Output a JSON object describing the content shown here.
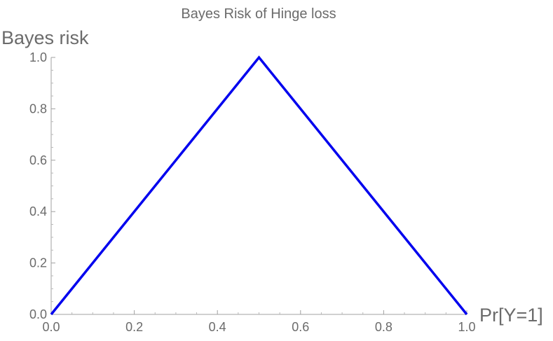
{
  "chart_data": {
    "type": "line",
    "title": "Bayes Risk of Hinge loss",
    "xlabel": "Pr[Y=1]",
    "ylabel": "Bayes risk",
    "xlim": [
      0,
      1
    ],
    "ylim": [
      0,
      1
    ],
    "x_ticks": [
      "0.0",
      "0.2",
      "0.4",
      "0.6",
      "0.8",
      "1.0"
    ],
    "y_ticks": [
      "0.0",
      "0.2",
      "0.4",
      "0.6",
      "0.8",
      "1.0"
    ],
    "grid": false,
    "series": [
      {
        "x": [
          0.0,
          0.5,
          1.0
        ],
        "y": [
          0.0,
          1.0,
          0.0
        ],
        "color": "#0000ee"
      }
    ]
  }
}
